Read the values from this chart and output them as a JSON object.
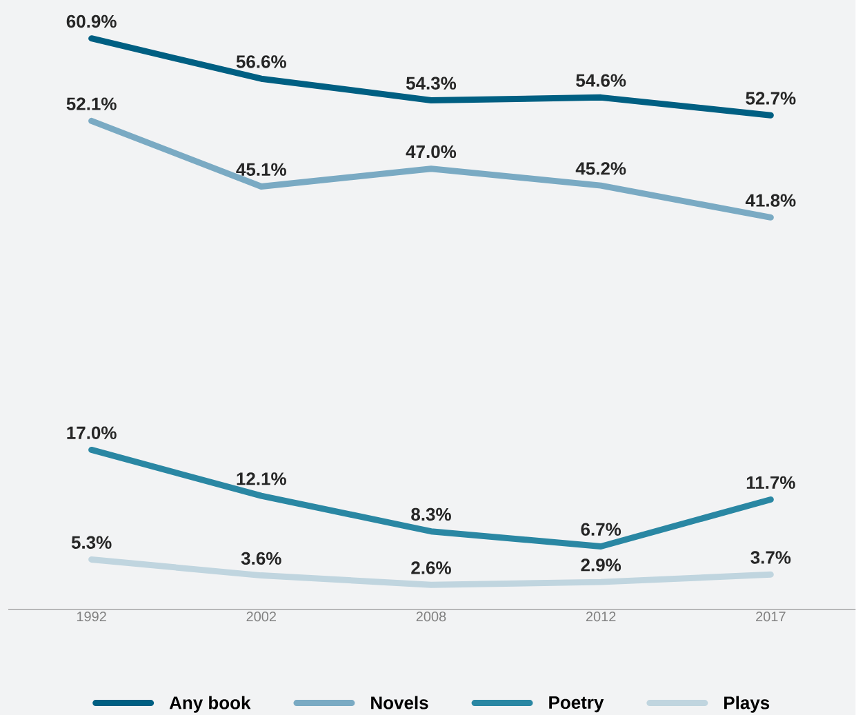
{
  "chart_data": {
    "type": "line",
    "categories": [
      "1992",
      "2002",
      "2008",
      "2012",
      "2017"
    ],
    "ylim": [
      0,
      65
    ],
    "series": [
      {
        "name": "Any book",
        "color": "#005f82",
        "values": [
          60.9,
          56.6,
          54.3,
          54.6,
          52.7
        ],
        "value_labels": [
          "60.9%",
          "56.6%",
          "54.3%",
          "54.6%",
          "52.7%"
        ]
      },
      {
        "name": "Novels",
        "color": "#7aaac3",
        "values": [
          52.1,
          45.1,
          47.0,
          45.2,
          41.8
        ],
        "value_labels": [
          "52.1%",
          "45.1%",
          "47.0%",
          "45.2%",
          "41.8%"
        ]
      },
      {
        "name": "Poetry",
        "color": "#2a87a3",
        "values": [
          17.0,
          12.1,
          8.3,
          6.7,
          11.7
        ],
        "value_labels": [
          "17.0%",
          "12.1%",
          "8.3%",
          "6.7%",
          "11.7%"
        ]
      },
      {
        "name": "Plays",
        "color": "#c0d5df",
        "values": [
          5.3,
          3.6,
          2.6,
          2.9,
          3.7
        ],
        "value_labels": [
          "5.3%",
          "3.6%",
          "2.6%",
          "2.9%",
          "3.7%"
        ]
      }
    ],
    "legend": "bottom",
    "marker": "none",
    "line_style": "solid"
  }
}
